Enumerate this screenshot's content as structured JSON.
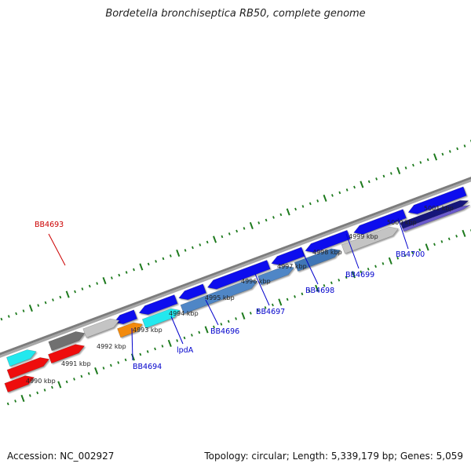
{
  "title": "Bordetella bronchiseptica RB50, complete genome",
  "footer": {
    "accession": "Accession: NC_002927",
    "summary": "Topology: circular; Length: 5,339,179 bp; Genes: 5,059"
  },
  "colors": {
    "backbone": "#888888",
    "tick": "#1d7a1d",
    "label_blue": "#0000cc",
    "label_red": "#cc0000"
  },
  "kbp_ticks": [
    {
      "label": "4990 kbp"
    },
    {
      "label": "4991 kbp"
    },
    {
      "label": "4992 kbp"
    },
    {
      "label": "4993 kbp"
    },
    {
      "label": "4994 kbp"
    },
    {
      "label": "4995 kbp"
    },
    {
      "label": "4996 kbp"
    },
    {
      "label": "4997 kbp"
    },
    {
      "label": "4998 kbp"
    },
    {
      "label": "4999 kbp"
    },
    {
      "label": "5000 kbp"
    },
    {
      "label": "5001 kbp"
    }
  ],
  "gene_labels": [
    {
      "name": "BB4693",
      "color": "red"
    },
    {
      "name": "BB4694",
      "color": "blue"
    },
    {
      "name": "lpdA",
      "color": "blue"
    },
    {
      "name": "BB4696",
      "color": "blue"
    },
    {
      "name": "BB4697",
      "color": "blue"
    },
    {
      "name": "BB4698",
      "color": "blue"
    },
    {
      "name": "BB4699",
      "color": "blue"
    },
    {
      "name": "BB4700",
      "color": "blue"
    }
  ],
  "features": [
    {
      "name": "blue-cds",
      "color": "#1010ee",
      "dir": -1
    },
    {
      "name": "blue-cds",
      "color": "#1010ee",
      "dir": -1
    },
    {
      "name": "blue-cds",
      "color": "#1010ee",
      "dir": -1
    },
    {
      "name": "blue-cds",
      "color": "#1010ee",
      "dir": -1
    },
    {
      "name": "blue-cds",
      "color": "#1010ee",
      "dir": -1
    },
    {
      "name": "blue-cds",
      "color": "#1010ee",
      "dir": -1
    },
    {
      "name": "blue-cds",
      "color": "#1010ee",
      "dir": -1
    },
    {
      "name": "blue-cds",
      "color": "#1010ee",
      "dir": -1
    },
    {
      "name": "cyan-cds",
      "color": "#22e8ee",
      "dir": 1
    },
    {
      "name": "steelblue-cds",
      "color": "#4f86c6",
      "dir": 1
    },
    {
      "name": "steelblue-cds",
      "color": "#4f86c6",
      "dir": 1
    },
    {
      "name": "steelblue-cds",
      "color": "#3f76b6",
      "dir": 1
    },
    {
      "name": "gray-cds",
      "color": "#c4c4c4",
      "dir": 1
    },
    {
      "name": "navy-cds",
      "color": "#14147a",
      "dir": 1
    },
    {
      "name": "orange-cds",
      "color": "#f28a10",
      "dir": 1
    },
    {
      "name": "purple-cds",
      "color": "#6a5acd",
      "dir": 1
    },
    {
      "name": "red-cds",
      "color": "#ee1111",
      "dir": 1
    },
    {
      "name": "red-cds",
      "color": "#ee1111",
      "dir": 1
    },
    {
      "name": "red-cds",
      "color": "#ee1111",
      "dir": 1
    },
    {
      "name": "darkgray-cds",
      "color": "#707070",
      "dir": 1
    },
    {
      "name": "lightgray-cds",
      "color": "#c4c4c4",
      "dir": 1
    },
    {
      "name": "cyan-cds",
      "color": "#22e8ee",
      "dir": 1
    }
  ]
}
